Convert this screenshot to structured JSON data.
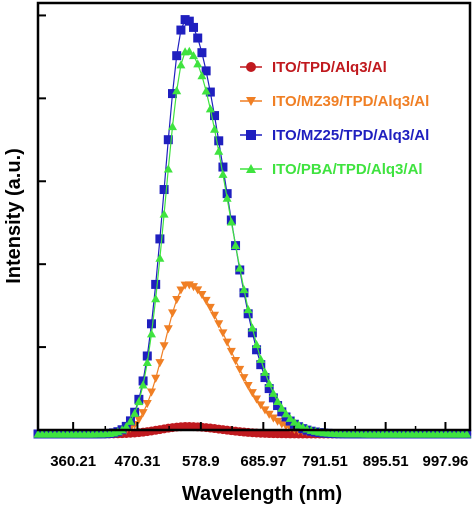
{
  "chart_data": {
    "type": "line",
    "xlabel": "Wavelength (nm)",
    "ylabel": "Intensity (a.u.)",
    "xlim": [
      300,
      1040
    ],
    "ylim": [
      0,
      1.03
    ],
    "xticks": [
      "360.21",
      "470.31",
      "578.9",
      "685.97",
      "791.51",
      "895.51",
      "997.96"
    ],
    "y_tick_labels_shown": false,
    "legend_position": "top-right",
    "series": [
      {
        "name": "ITO/TPD/Alq3/Al",
        "color": "#c0191e",
        "marker": "circle",
        "peak_x": 555,
        "peak_y": 0.018,
        "width_left": 45,
        "width_right": 60
      },
      {
        "name": "ITO/MZ39/TPD/Alq3/Al",
        "color": "#f07f24",
        "marker": "triangle-down",
        "peak_x": 555,
        "peak_y": 0.36,
        "width_left": 38,
        "width_right": 70
      },
      {
        "name": "ITO/MZ25/TPD/Alq3/Al",
        "color": "#1f1fbf",
        "marker": "square",
        "peak_x": 553,
        "peak_y": 1.0,
        "width_left": 36,
        "width_right": 68
      },
      {
        "name": "ITO/PBA/TPD/Alq3/Al",
        "color": "#3fe33f",
        "marker": "triangle-up",
        "peak_x": 555,
        "peak_y": 0.925,
        "width_left": 37,
        "width_right": 70
      }
    ]
  }
}
